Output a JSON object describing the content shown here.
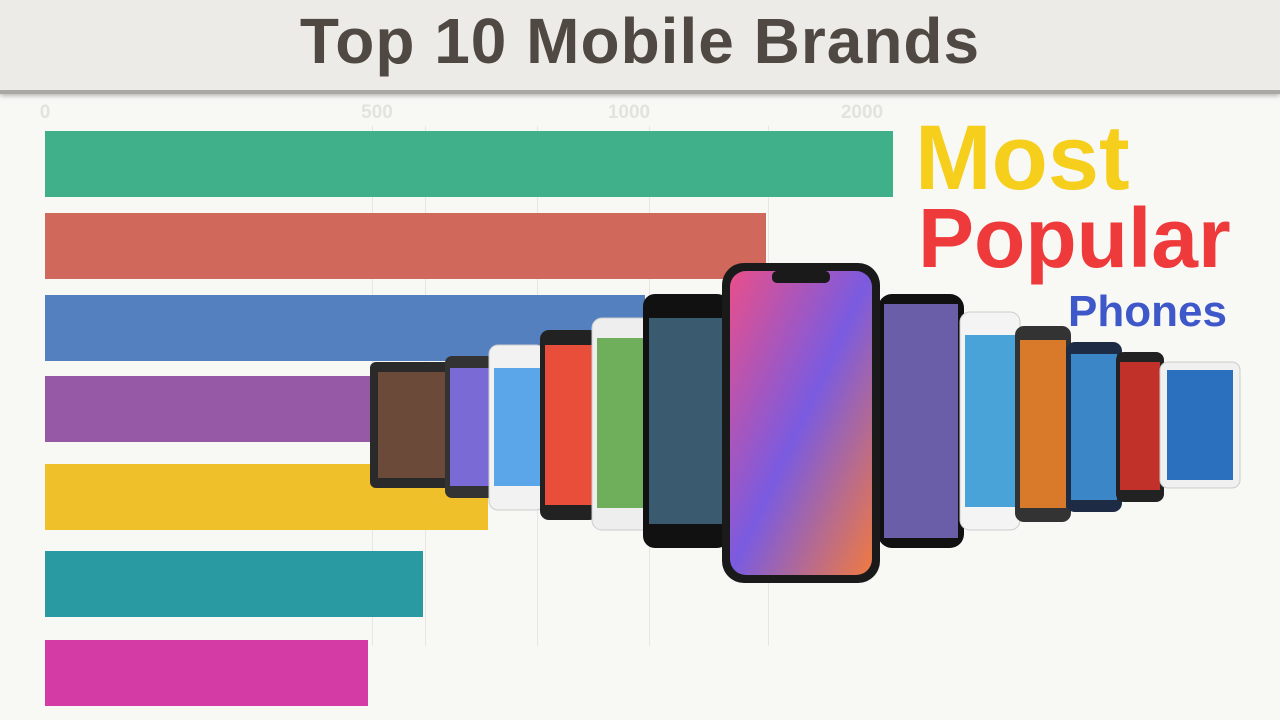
{
  "header": {
    "title": "Top 10 Mobile Brands"
  },
  "promo": {
    "line1": "Most",
    "line2": "Popular",
    "line3": "Phones",
    "colors": {
      "line1": "#f5cf1c",
      "line2": "#ee3a3a",
      "line3": "#3f58c9"
    }
  },
  "chart_data": {
    "type": "bar",
    "orientation": "horizontal",
    "title": "Top 10 Mobile Brands",
    "xticks": [
      "0",
      "500",
      "1000",
      "2000"
    ],
    "grid": true,
    "categories": [
      "",
      "",
      "",
      "",
      "",
      "",
      ""
    ],
    "values": [
      2075,
      1765,
      1470,
      1150,
      1085,
      925,
      790
    ],
    "colors": [
      "#3fb08a",
      "#d0685c",
      "#5480c0",
      "#9659a6",
      "#f0c02a",
      "#2a9aa2",
      "#d43ba5"
    ],
    "note_visible": "bars partly hidden behind phone image"
  }
}
